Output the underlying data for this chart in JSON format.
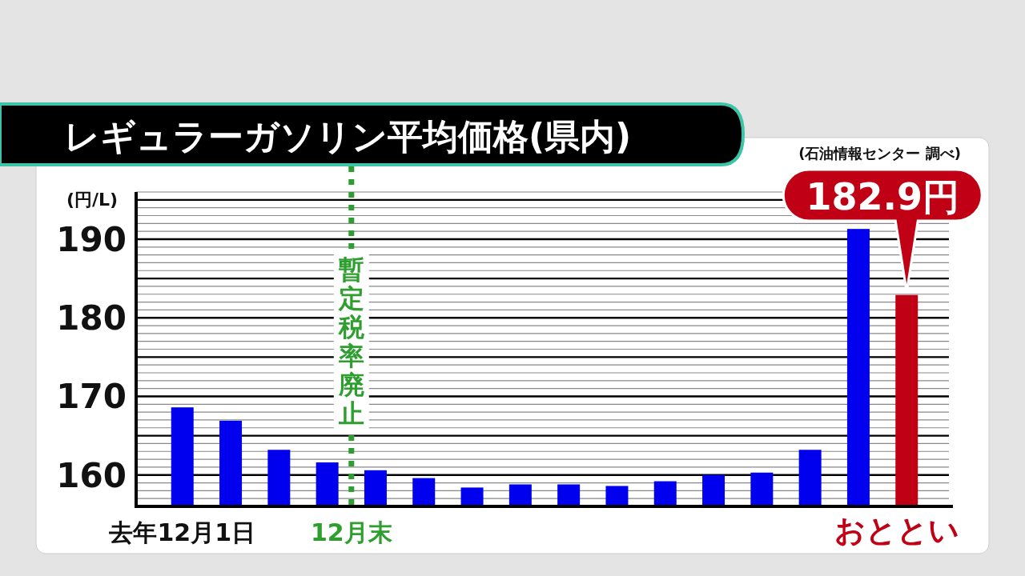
{
  "chart_data": {
    "type": "bar",
    "title": "レギュラーガソリン平均価格(県内)",
    "ylabel": "(円/L)",
    "annotations": [
      "(石油情報センター 調べ)",
      "12月末",
      "暫定税率廃止"
    ],
    "categories": [
      "去年12月1日",
      null,
      null,
      null,
      null,
      null,
      null,
      null,
      null,
      null,
      null,
      null,
      null,
      null,
      null,
      "おととい"
    ],
    "values": [
      168.6,
      166.9,
      163.2,
      161.6,
      160.6,
      159.6,
      158.4,
      158.8,
      158.8,
      158.6,
      159.2,
      160.0,
      160.3,
      163.2,
      191.3,
      182.9
    ],
    "colors": [
      "#0000ee",
      "#0000ee",
      "#0000ee",
      "#0000ee",
      "#0000ee",
      "#0000ee",
      "#0000ee",
      "#0000ee",
      "#0000ee",
      "#0000ee",
      "#0000ee",
      "#0000ee",
      "#0000ee",
      "#0000ee",
      "#0000ee",
      "#c00014"
    ],
    "value_labels": [
      null,
      null,
      null,
      null,
      null,
      null,
      null,
      null,
      null,
      null,
      null,
      null,
      null,
      null,
      null,
      "182.9円"
    ],
    "ylim": [
      156,
      196
    ],
    "yticks": [
      160,
      170,
      180,
      190,
      {
        "value": 165,
        "label": null
      },
      {
        "value": 175,
        "label": null
      },
      {
        "value": 185,
        "label": null
      },
      {
        "value": 195,
        "label": null
      }
    ],
    "grid": "y"
  }
}
